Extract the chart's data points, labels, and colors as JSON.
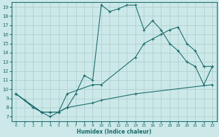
{
  "xlabel": "Humidex (Indice chaleur)",
  "bg_color": "#cce8e8",
  "line_color": "#1a6b6b",
  "grid_color": "#b0d0d0",
  "xlim": [
    -0.5,
    23.5
  ],
  "ylim": [
    6.5,
    19.5
  ],
  "xticks": [
    0,
    1,
    2,
    3,
    4,
    5,
    6,
    7,
    8,
    9,
    10,
    11,
    12,
    13,
    14,
    15,
    16,
    17,
    18,
    19,
    20,
    21,
    22,
    23
  ],
  "yticks": [
    7,
    8,
    9,
    10,
    11,
    12,
    13,
    14,
    15,
    16,
    17,
    18,
    19
  ],
  "line1_x": [
    0,
    1,
    2,
    3,
    4,
    5,
    6,
    7,
    8,
    9,
    10,
    11,
    12,
    13,
    14,
    15,
    16,
    17,
    18,
    19,
    20,
    21,
    22,
    23
  ],
  "line1_y": [
    9.5,
    8.8,
    8.0,
    7.5,
    7.0,
    7.5,
    8.0,
    9.5,
    11.5,
    11.0,
    19.2,
    18.5,
    18.8,
    19.2,
    19.2,
    16.5,
    17.5,
    16.5,
    15.0,
    14.2,
    13.0,
    12.5,
    10.5,
    12.5
  ],
  "line2_x": [
    0,
    3,
    4,
    5,
    6,
    9,
    10,
    14,
    15,
    16,
    17,
    18,
    19,
    20,
    21,
    22,
    23
  ],
  "line2_y": [
    9.5,
    7.5,
    7.5,
    7.5,
    9.5,
    10.5,
    10.5,
    13.5,
    15.0,
    15.5,
    16.0,
    16.5,
    16.8,
    15.0,
    14.2,
    12.5,
    12.5
  ],
  "line3_x": [
    0,
    3,
    4,
    5,
    6,
    9,
    10,
    14,
    23
  ],
  "line3_y": [
    9.5,
    7.5,
    7.5,
    7.5,
    8.0,
    8.5,
    8.8,
    9.5,
    10.5
  ]
}
